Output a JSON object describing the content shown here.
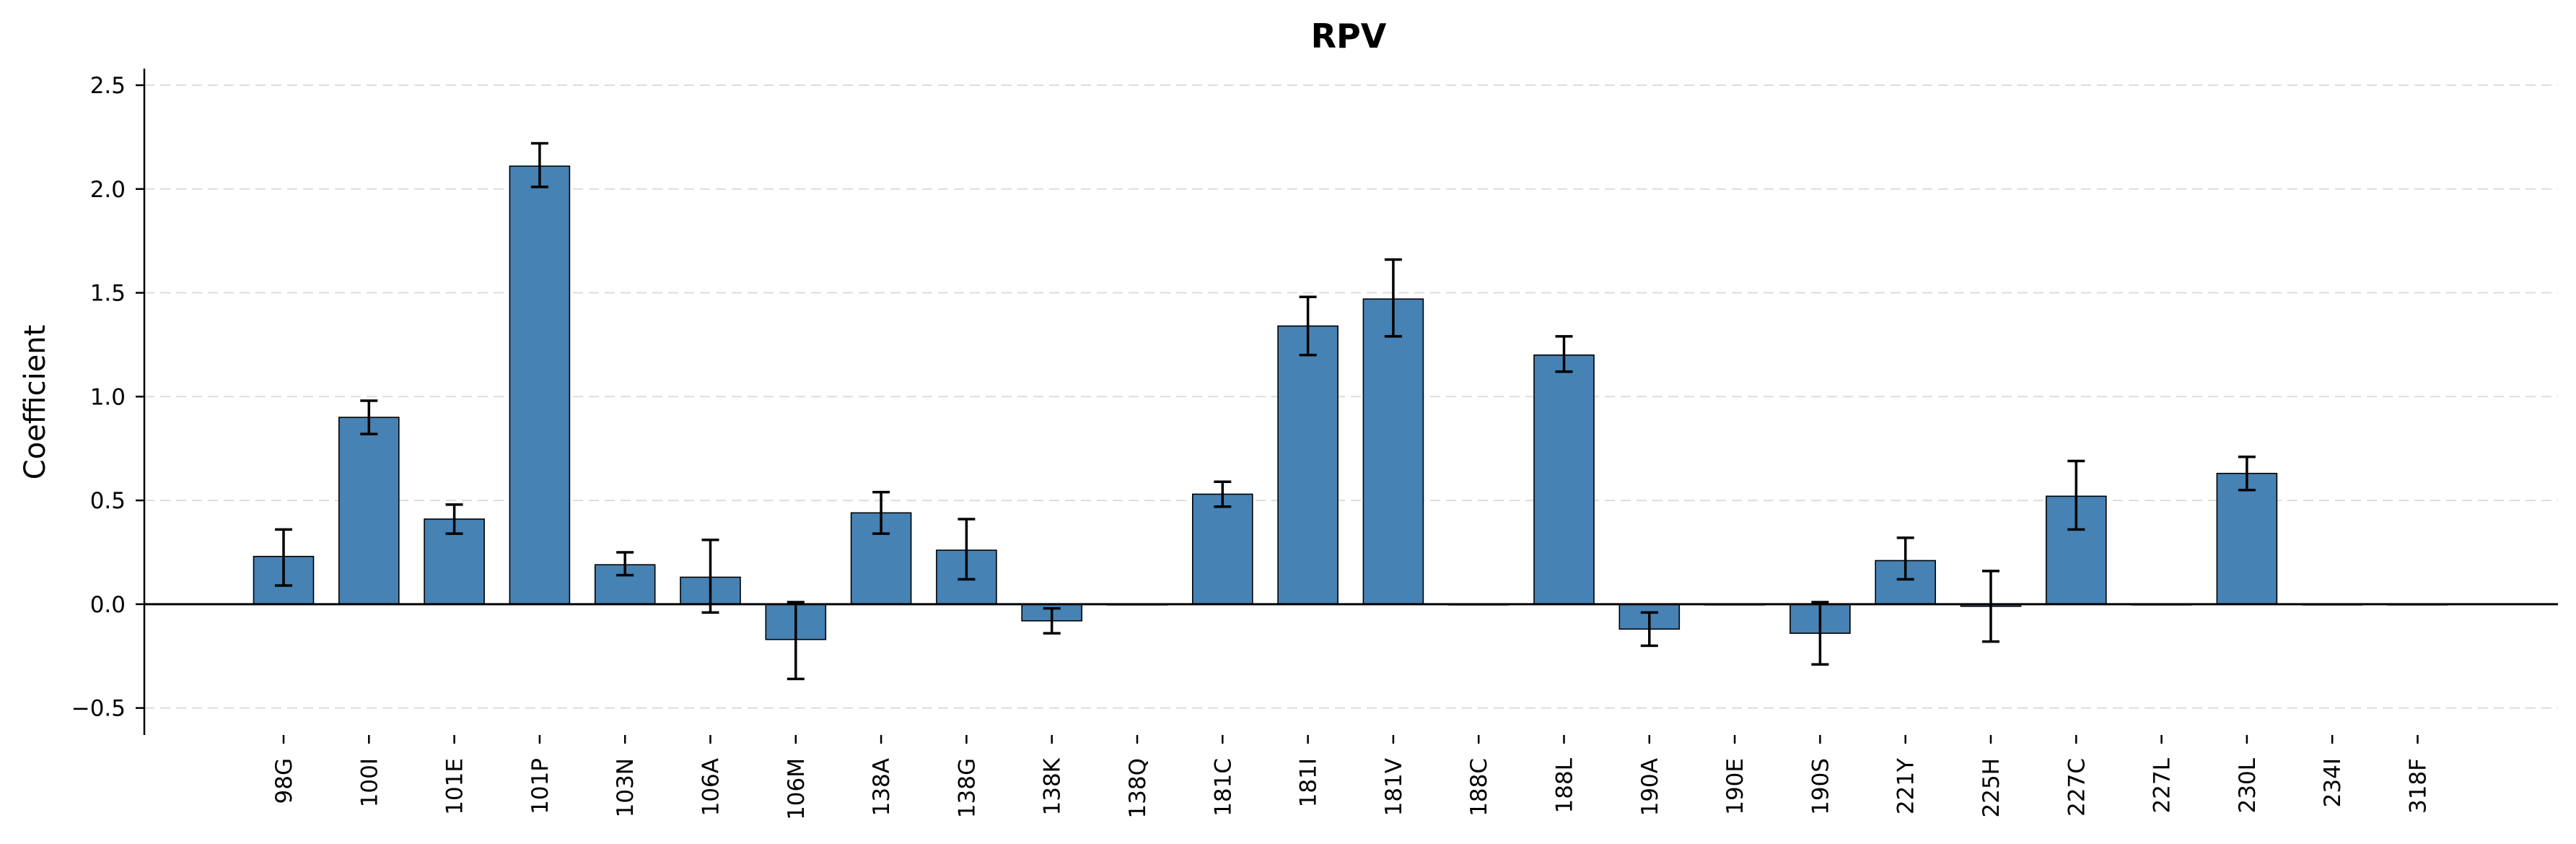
{
  "chart_data": {
    "type": "bar",
    "title": "RPV",
    "xlabel": "",
    "ylabel": "Coefficient",
    "ylim": [
      -0.63,
      2.58
    ],
    "yticks": [
      -0.5,
      0.0,
      0.5,
      1.0,
      1.5,
      2.0,
      2.5
    ],
    "ytick_labels": [
      "−0.5",
      "0.0",
      "0.5",
      "1.0",
      "1.5",
      "2.0",
      "2.5"
    ],
    "grid": "horizontal dashed",
    "bar_color": "#4682b4",
    "categories": [
      "98G",
      "100I",
      "101E",
      "101P",
      "103N",
      "106A",
      "106M",
      "138A",
      "138G",
      "138K",
      "138Q",
      "181C",
      "181I",
      "181V",
      "188C",
      "188L",
      "190A",
      "190E",
      "190S",
      "221Y",
      "225H",
      "227C",
      "227L",
      "230L",
      "234I",
      "318F"
    ],
    "values": [
      0.23,
      0.9,
      0.41,
      2.11,
      0.19,
      0.13,
      -0.17,
      0.44,
      0.26,
      -0.08,
      0.0,
      0.53,
      1.34,
      1.47,
      0.0,
      1.2,
      -0.12,
      0.0,
      -0.14,
      0.21,
      -0.01,
      0.52,
      0.0,
      0.63,
      0.0,
      0.0
    ],
    "error_low": [
      0.09,
      0.82,
      0.34,
      2.01,
      0.14,
      -0.04,
      -0.36,
      0.34,
      0.12,
      -0.14,
      0.0,
      0.47,
      1.2,
      1.29,
      0.0,
      1.12,
      -0.2,
      0.0,
      -0.29,
      0.12,
      -0.18,
      0.36,
      0.0,
      0.55,
      0.0,
      0.0
    ],
    "error_high": [
      0.36,
      0.98,
      0.48,
      2.22,
      0.25,
      0.31,
      0.01,
      0.54,
      0.41,
      -0.02,
      0.0,
      0.59,
      1.48,
      1.66,
      0.0,
      1.29,
      -0.04,
      0.0,
      0.01,
      0.32,
      0.16,
      0.69,
      0.0,
      0.71,
      0.0,
      0.0
    ]
  }
}
